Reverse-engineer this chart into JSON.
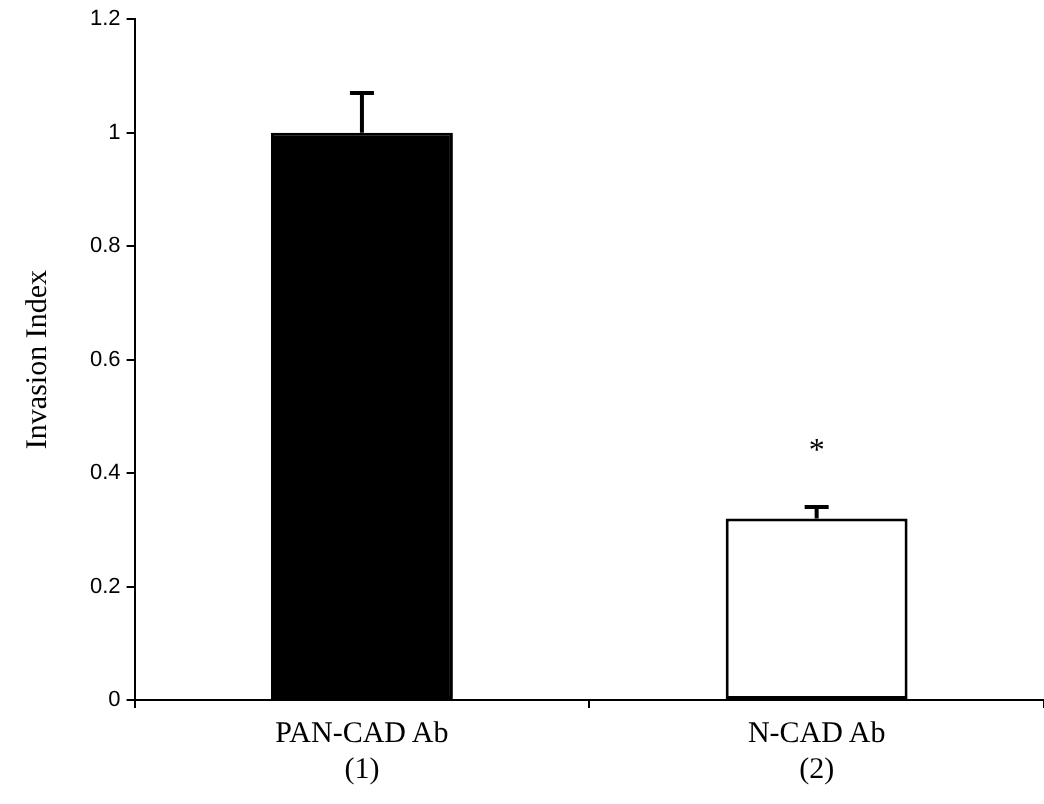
{
  "chart_data": {
    "type": "bar",
    "ylabel": "Invasion Index",
    "categories": [
      "PAN-CAD Ab\n(1)",
      "N-CAD Ab\n(2)"
    ],
    "values": [
      1.0,
      0.32
    ],
    "colors": [
      "#000000",
      "#ffffff"
    ],
    "errors": [
      [
        1.0,
        1.07
      ],
      [
        0.32,
        0.34
      ]
    ],
    "ylim": [
      0,
      1.2
    ],
    "yticks": [
      0,
      0.2,
      0.4,
      0.6,
      0.8,
      1,
      1.2
    ],
    "grid": false,
    "legend": false,
    "annotations": [
      "*"
    ]
  }
}
